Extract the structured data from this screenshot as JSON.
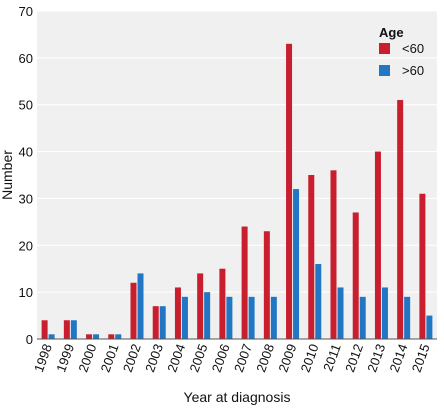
{
  "chart_data": {
    "type": "bar",
    "title": "",
    "xlabel": "Year at diagnosis",
    "ylabel": "Number",
    "ylim": [
      0,
      70
    ],
    "yticks": [
      0,
      10,
      20,
      30,
      40,
      50,
      60,
      70
    ],
    "grid": "horizontal",
    "legend": {
      "title": "Age",
      "placement": "top-right"
    },
    "categories": [
      "1998",
      "1999",
      "2000",
      "2001",
      "2002",
      "2003",
      "2004",
      "2005",
      "2006",
      "2007",
      "2008",
      "2009",
      "2010",
      "2011",
      "2012",
      "2013",
      "2014",
      "2015"
    ],
    "series": [
      {
        "name": "<60",
        "color": "#c81e2e",
        "values": [
          4,
          4,
          1,
          1,
          12,
          7,
          11,
          14,
          15,
          24,
          23,
          63,
          35,
          36,
          27,
          40,
          51,
          31
        ]
      },
      {
        "name": ">60",
        "color": "#2277c4",
        "values": [
          1,
          4,
          1,
          1,
          14,
          7,
          9,
          10,
          9,
          9,
          9,
          32,
          16,
          11,
          9,
          11,
          9,
          5
        ]
      }
    ]
  }
}
